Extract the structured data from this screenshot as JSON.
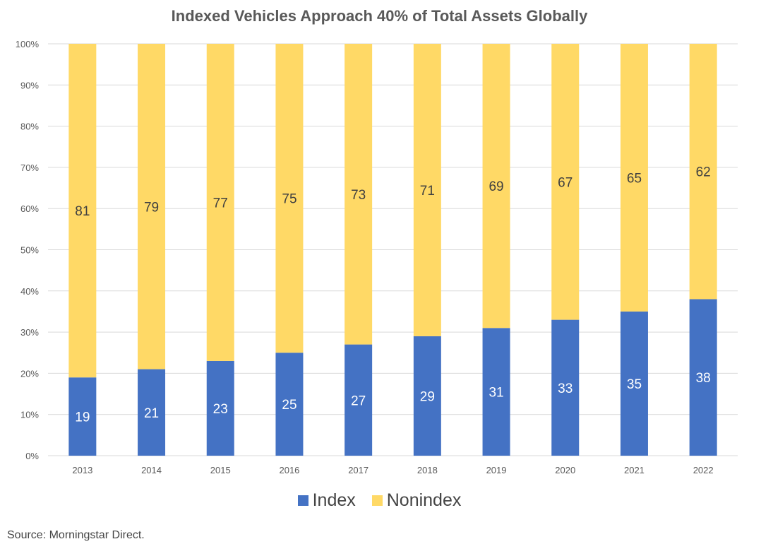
{
  "chart_data": {
    "type": "bar",
    "stacked": true,
    "title": "Indexed Vehicles Approach 40% of Total Assets Globally",
    "categories": [
      "2013",
      "2014",
      "2015",
      "2016",
      "2017",
      "2018",
      "2019",
      "2020",
      "2021",
      "2022"
    ],
    "series": [
      {
        "name": "Index",
        "color": "#4472C4",
        "values": [
          19,
          21,
          23,
          25,
          27,
          29,
          31,
          33,
          35,
          38
        ]
      },
      {
        "name": "Nonindex",
        "color": "#FFD966",
        "values": [
          81,
          79,
          77,
          75,
          73,
          71,
          69,
          67,
          65,
          62
        ]
      }
    ],
    "ylim": [
      0,
      100
    ],
    "yticks": [
      "0%",
      "10%",
      "20%",
      "30%",
      "40%",
      "50%",
      "60%",
      "70%",
      "80%",
      "90%",
      "100%"
    ],
    "grid": true,
    "legend": "bottom",
    "source": "Source: Morningstar Direct."
  }
}
